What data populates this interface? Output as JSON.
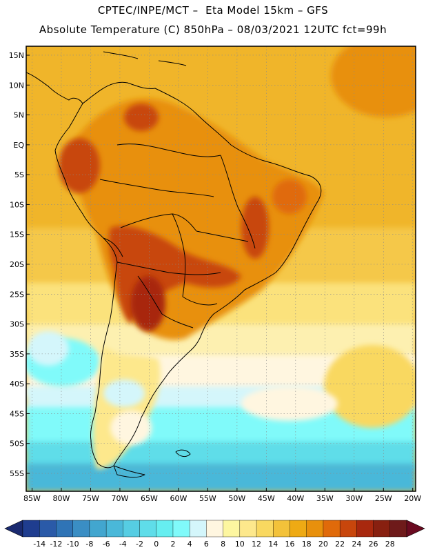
{
  "header": {
    "line1": "CPTEC/INPE/MCT –  Eta Model 15km – GFS",
    "line2": "Absolute Temperature (C) 850hPa – 08/03/2021 12UTC fct=99h"
  },
  "map": {
    "lat_labels": [
      "15N",
      "10N",
      "5N",
      "EQ",
      "5S",
      "10S",
      "15S",
      "20S",
      "25S",
      "30S",
      "35S",
      "40S",
      "45S",
      "50S",
      "55S"
    ],
    "lon_labels": [
      "85W",
      "80W",
      "75W",
      "70W",
      "65W",
      "60W",
      "55W",
      "50W",
      "45W",
      "40W",
      "35W",
      "30W",
      "25W",
      "20W"
    ],
    "lat_values": [
      15,
      10,
      5,
      0,
      -5,
      -10,
      -15,
      -20,
      -25,
      -30,
      -35,
      -40,
      -45,
      -50,
      -55
    ],
    "lon_values": [
      -85,
      -80,
      -75,
      -70,
      -65,
      -60,
      -55,
      -50,
      -45,
      -40,
      -35,
      -30,
      -25,
      -20
    ],
    "lat_range": [
      -58,
      16.5
    ],
    "lon_range": [
      -86,
      -19.5
    ]
  },
  "colorbar": {
    "labels": [
      "-14",
      "-12",
      "-10",
      "-8",
      "-6",
      "-4",
      "-2",
      "0",
      "2",
      "4",
      "6",
      "8",
      "10",
      "12",
      "14",
      "16",
      "18",
      "20",
      "22",
      "24",
      "26",
      "28"
    ],
    "colors": [
      "#1f3d8f",
      "#2a5aa8",
      "#2f74b6",
      "#3a8ec4",
      "#42a6cf",
      "#4ab8d9",
      "#56cde3",
      "#5fdde9",
      "#66eef0",
      "#80fafa",
      "#d4f6fb",
      "#fff6e0",
      "#fdf6a0",
      "#fde88c",
      "#f9d860",
      "#f3c23a",
      "#eeaa14",
      "#e8900c",
      "#e06a0a",
      "#c8460c",
      "#a8280e",
      "#882010",
      "#6e1a1a"
    ],
    "left_arrow_color": "#1a2a70",
    "right_arrow_color": "#6a0a20"
  }
}
